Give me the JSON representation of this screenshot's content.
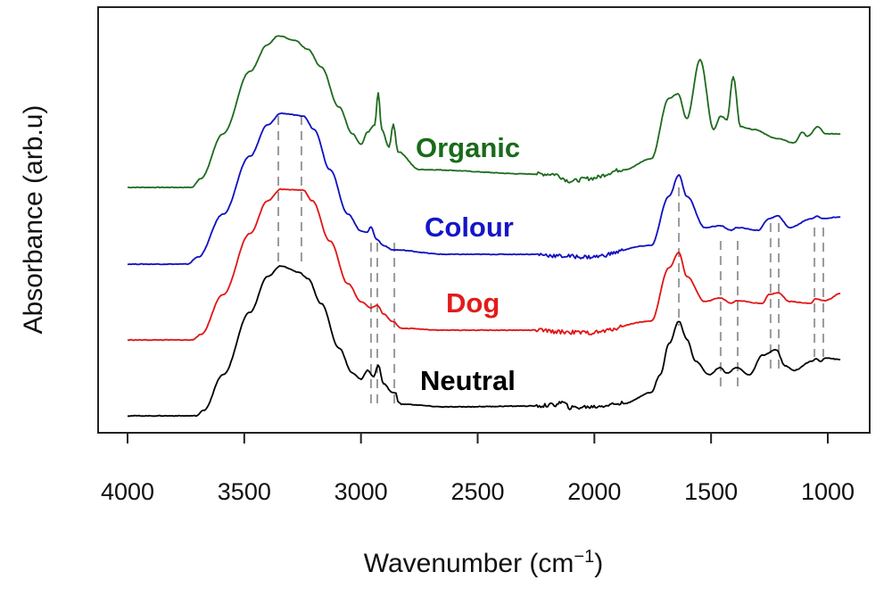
{
  "chart_data": {
    "type": "line",
    "title": "",
    "xlabel": "Wavenumber (cm",
    "xlabel_sup": "−1",
    "xlabel_close": ")",
    "ylabel": "Absorbance (arb.u)",
    "xlim": [
      4000,
      1000
    ],
    "x_reversed": true,
    "ylim": [
      0,
      95
    ],
    "y_ticks_shown": false,
    "grid": false,
    "x_ticks": [
      "4000",
      "3500",
      "3000",
      "2500",
      "2000",
      "1500",
      "1000"
    ],
    "legend": "inline labels",
    "series": [
      {
        "name": "Organic",
        "color": "#1e6b1e",
        "label_color": "#1a6a1a",
        "points": [
          [
            4000,
            55
          ],
          [
            3725,
            55
          ],
          [
            3687,
            57
          ],
          [
            3591,
            67
          ],
          [
            3476,
            81
          ],
          [
            3400,
            87
          ],
          [
            3354,
            89
          ],
          [
            3285,
            88
          ],
          [
            3228,
            86
          ],
          [
            3171,
            82
          ],
          [
            3094,
            73
          ],
          [
            3037,
            67
          ],
          [
            2999,
            64.6
          ],
          [
            2972,
            67.4
          ],
          [
            2941,
            69
          ],
          [
            2926,
            76.2
          ],
          [
            2911,
            68
          ],
          [
            2880,
            64
          ],
          [
            2861,
            69.2
          ],
          [
            2842,
            63
          ],
          [
            2750,
            59
          ],
          [
            2253,
            58
          ],
          [
            2177,
            58
          ],
          [
            2101,
            56.4
          ],
          [
            2024,
            57
          ],
          [
            1871,
            59
          ],
          [
            1757,
            61.4
          ],
          [
            1680,
            75
          ],
          [
            1642,
            76
          ],
          [
            1604,
            70.4
          ],
          [
            1547,
            83.6
          ],
          [
            1489,
            68
          ],
          [
            1459,
            71
          ],
          [
            1432,
            70.2
          ],
          [
            1405,
            79.8
          ],
          [
            1374,
            68.6
          ],
          [
            1317,
            68
          ],
          [
            1221,
            66
          ],
          [
            1145,
            65
          ],
          [
            1107,
            67.4
          ],
          [
            1088,
            66.4
          ],
          [
            1042,
            68.6
          ],
          [
            1011,
            67
          ],
          [
            946,
            67
          ]
        ]
      },
      {
        "name": "Colour",
        "color": "#1010c0",
        "label_color": "#1515c8",
        "points": [
          [
            4000,
            37.8
          ],
          [
            3744,
            37.8
          ],
          [
            3698,
            39.4
          ],
          [
            3591,
            49
          ],
          [
            3476,
            62
          ],
          [
            3400,
            69
          ],
          [
            3343,
            71.6
          ],
          [
            3247,
            71
          ],
          [
            3201,
            68
          ],
          [
            3133,
            59
          ],
          [
            3056,
            49
          ],
          [
            2999,
            45.2
          ],
          [
            2972,
            45
          ],
          [
            2957,
            46.2
          ],
          [
            2934,
            43.4
          ],
          [
            2903,
            42
          ],
          [
            2865,
            41
          ],
          [
            2636,
            40
          ],
          [
            2253,
            40
          ],
          [
            2139,
            39.6
          ],
          [
            2024,
            39.4
          ],
          [
            1757,
            42
          ],
          [
            1680,
            53
          ],
          [
            1638,
            57.8
          ],
          [
            1604,
            53
          ],
          [
            1527,
            46
          ],
          [
            1462,
            46.4
          ],
          [
            1413,
            45.4
          ],
          [
            1390,
            46
          ],
          [
            1298,
            45.4
          ],
          [
            1252,
            48
          ],
          [
            1214,
            48.6
          ],
          [
            1164,
            46
          ],
          [
            1069,
            48
          ],
          [
            1046,
            48.6
          ],
          [
            1023,
            48
          ],
          [
            946,
            48.4
          ]
        ]
      },
      {
        "name": "Dog",
        "color": "#e01515",
        "label_color": "#e31b1b",
        "points": [
          [
            4000,
            20.8
          ],
          [
            3725,
            20.8
          ],
          [
            3687,
            22
          ],
          [
            3591,
            31
          ],
          [
            3476,
            44.6
          ],
          [
            3400,
            52
          ],
          [
            3343,
            54.6
          ],
          [
            3247,
            54.4
          ],
          [
            3209,
            52
          ],
          [
            3133,
            43
          ],
          [
            3056,
            33.4
          ],
          [
            2999,
            29.4
          ],
          [
            2957,
            28
          ],
          [
            2930,
            28.6
          ],
          [
            2903,
            26.6
          ],
          [
            2865,
            25
          ],
          [
            2827,
            23.4
          ],
          [
            2636,
            23
          ],
          [
            2253,
            23
          ],
          [
            2139,
            22.6
          ],
          [
            2024,
            22.4
          ],
          [
            1757,
            25
          ],
          [
            1680,
            37
          ],
          [
            1638,
            40.4
          ],
          [
            1604,
            35
          ],
          [
            1527,
            29.4
          ],
          [
            1462,
            30.2
          ],
          [
            1413,
            29
          ],
          [
            1390,
            29.6
          ],
          [
            1279,
            29
          ],
          [
            1252,
            31
          ],
          [
            1214,
            31.4
          ],
          [
            1164,
            29.4
          ],
          [
            1069,
            29
          ],
          [
            1057,
            30
          ],
          [
            1011,
            29.6
          ],
          [
            946,
            31.2
          ]
        ]
      },
      {
        "name": "Neutral",
        "color": "#000000",
        "label_color": "#000000",
        "points": [
          [
            4000,
            3.8
          ],
          [
            3706,
            3.8
          ],
          [
            3675,
            5
          ],
          [
            3591,
            13
          ],
          [
            3476,
            27
          ],
          [
            3400,
            35
          ],
          [
            3343,
            37.4
          ],
          [
            3266,
            36
          ],
          [
            3228,
            34.6
          ],
          [
            3171,
            29
          ],
          [
            3094,
            19
          ],
          [
            3037,
            13.4
          ],
          [
            2999,
            12
          ],
          [
            2972,
            14
          ],
          [
            2945,
            12.6
          ],
          [
            2926,
            15.2
          ],
          [
            2903,
            11
          ],
          [
            2865,
            9
          ],
          [
            2850,
            9
          ],
          [
            2842,
            7
          ],
          [
            2827,
            6.4
          ],
          [
            2636,
            5.8
          ],
          [
            2253,
            6
          ],
          [
            2177,
            6.2
          ],
          [
            2139,
            6.8
          ],
          [
            2101,
            5.6
          ],
          [
            2024,
            5.8
          ],
          [
            1871,
            6.6
          ],
          [
            1757,
            9
          ],
          [
            1718,
            13
          ],
          [
            1680,
            20
          ],
          [
            1638,
            25
          ],
          [
            1604,
            21
          ],
          [
            1566,
            16
          ],
          [
            1508,
            13
          ],
          [
            1462,
            14.6
          ],
          [
            1432,
            13.4
          ],
          [
            1390,
            14.6
          ],
          [
            1336,
            13
          ],
          [
            1279,
            17.4
          ],
          [
            1221,
            18.6
          ],
          [
            1183,
            15
          ],
          [
            1145,
            14
          ],
          [
            1069,
            16
          ],
          [
            1050,
            16.6
          ],
          [
            1031,
            16
          ],
          [
            1011,
            16.8
          ],
          [
            946,
            16.4
          ]
        ]
      }
    ],
    "reference_lines": [
      {
        "wavenumber": 3354,
        "y_range": [
          37.4,
          71
        ]
      },
      {
        "wavenumber": 3255,
        "y_range": [
          37.4,
          71
        ]
      },
      {
        "wavenumber": 2957,
        "y_range": [
          6,
          42.6
        ]
      },
      {
        "wavenumber": 2930,
        "y_range": [
          6,
          42.6
        ]
      },
      {
        "wavenumber": 2857,
        "y_range": [
          6,
          42.6
        ]
      },
      {
        "wavenumber": 1638,
        "y_range": [
          24,
          55
        ]
      },
      {
        "wavenumber": 1459,
        "y_range": [
          9,
          43
        ]
      },
      {
        "wavenumber": 1386,
        "y_range": [
          9,
          43
        ]
      },
      {
        "wavenumber": 1245,
        "y_range": [
          13,
          47
        ]
      },
      {
        "wavenumber": 1210,
        "y_range": [
          13,
          47
        ]
      },
      {
        "wavenumber": 1057,
        "y_range": [
          17,
          46
        ]
      },
      {
        "wavenumber": 1019,
        "y_range": [
          17,
          46
        ]
      }
    ],
    "reference_line_color": "#9a9a9a"
  }
}
